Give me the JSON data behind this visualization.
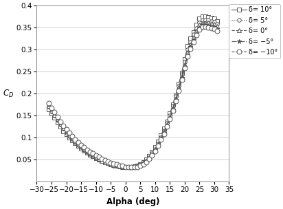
{
  "xlabel": "Alpha (deg)",
  "ylabel": "C_D",
  "xlim": [
    -30,
    35
  ],
  "ylim": [
    0,
    0.4
  ],
  "xticks": [
    -30,
    -25,
    -20,
    -15,
    -10,
    -5,
    0,
    5,
    10,
    15,
    20,
    25,
    30,
    35
  ],
  "yticks": [
    0.05,
    0.1,
    0.15,
    0.2,
    0.25,
    0.3,
    0.35,
    0.4
  ],
  "ytick_labels": [
    "0.05",
    "0.1",
    "0.15",
    "0.2",
    "0.25",
    "0.3",
    "0.35",
    "0.4"
  ],
  "legend_labels": [
    "δ= 10°",
    "δ= 5°",
    "δ= 0°",
    "δ= −5°",
    "δ= −10°"
  ],
  "line_styles": [
    "-",
    ":",
    "--",
    "-.",
    "--"
  ],
  "markers": [
    "s",
    "o",
    "^",
    "*",
    "o"
  ],
  "marker_sizes": [
    4,
    4,
    4,
    5,
    5
  ],
  "alpha_values": [
    -26,
    -25,
    -24,
    -23,
    -22,
    -21,
    -20,
    -19,
    -18,
    -17,
    -16,
    -15,
    -14,
    -13,
    -12,
    -11,
    -10,
    -9,
    -8,
    -7,
    -6,
    -5,
    -4,
    -3,
    -2,
    -1,
    0,
    1,
    2,
    3,
    4,
    5,
    6,
    7,
    8,
    9,
    10,
    11,
    12,
    13,
    14,
    15,
    16,
    17,
    18,
    19,
    20,
    21,
    22,
    23,
    24,
    25,
    26,
    27,
    28,
    29,
    30,
    31
  ],
  "cd_delta_10": [
    0.165,
    0.155,
    0.145,
    0.135,
    0.125,
    0.115,
    0.108,
    0.101,
    0.094,
    0.088,
    0.082,
    0.076,
    0.071,
    0.066,
    0.062,
    0.058,
    0.054,
    0.05,
    0.047,
    0.044,
    0.042,
    0.04,
    0.038,
    0.037,
    0.036,
    0.035,
    0.034,
    0.034,
    0.034,
    0.035,
    0.037,
    0.04,
    0.044,
    0.05,
    0.058,
    0.067,
    0.078,
    0.091,
    0.105,
    0.12,
    0.137,
    0.155,
    0.175,
    0.198,
    0.222,
    0.248,
    0.278,
    0.308,
    0.325,
    0.34,
    0.356,
    0.37,
    0.375,
    0.375,
    0.374,
    0.372,
    0.37,
    0.365
  ],
  "cd_delta_5": [
    0.17,
    0.16,
    0.15,
    0.14,
    0.13,
    0.12,
    0.112,
    0.104,
    0.097,
    0.09,
    0.084,
    0.078,
    0.072,
    0.067,
    0.062,
    0.058,
    0.054,
    0.05,
    0.047,
    0.044,
    0.042,
    0.039,
    0.037,
    0.036,
    0.035,
    0.034,
    0.034,
    0.033,
    0.033,
    0.034,
    0.036,
    0.039,
    0.043,
    0.048,
    0.055,
    0.064,
    0.074,
    0.087,
    0.101,
    0.116,
    0.133,
    0.151,
    0.172,
    0.194,
    0.218,
    0.244,
    0.272,
    0.3,
    0.318,
    0.334,
    0.349,
    0.362,
    0.368,
    0.368,
    0.367,
    0.365,
    0.363,
    0.358
  ],
  "cd_delta_0": [
    0.172,
    0.162,
    0.152,
    0.142,
    0.132,
    0.122,
    0.114,
    0.106,
    0.099,
    0.092,
    0.086,
    0.08,
    0.074,
    0.069,
    0.064,
    0.06,
    0.056,
    0.052,
    0.048,
    0.045,
    0.042,
    0.04,
    0.038,
    0.036,
    0.035,
    0.034,
    0.033,
    0.033,
    0.033,
    0.034,
    0.035,
    0.038,
    0.042,
    0.047,
    0.054,
    0.062,
    0.072,
    0.085,
    0.099,
    0.114,
    0.13,
    0.148,
    0.168,
    0.19,
    0.214,
    0.24,
    0.266,
    0.294,
    0.312,
    0.328,
    0.343,
    0.356,
    0.362,
    0.362,
    0.361,
    0.36,
    0.358,
    0.353
  ],
  "cd_delta_m5": [
    0.175,
    0.165,
    0.155,
    0.144,
    0.134,
    0.124,
    0.116,
    0.108,
    0.101,
    0.094,
    0.088,
    0.082,
    0.076,
    0.071,
    0.066,
    0.062,
    0.058,
    0.054,
    0.05,
    0.047,
    0.044,
    0.041,
    0.039,
    0.037,
    0.036,
    0.034,
    0.033,
    0.033,
    0.032,
    0.033,
    0.035,
    0.037,
    0.041,
    0.046,
    0.053,
    0.061,
    0.071,
    0.083,
    0.097,
    0.111,
    0.127,
    0.145,
    0.165,
    0.187,
    0.21,
    0.236,
    0.262,
    0.288,
    0.306,
    0.322,
    0.337,
    0.35,
    0.356,
    0.356,
    0.355,
    0.354,
    0.352,
    0.347
  ],
  "cd_delta_m10": [
    0.178,
    0.168,
    0.158,
    0.147,
    0.137,
    0.127,
    0.119,
    0.111,
    0.103,
    0.096,
    0.09,
    0.084,
    0.078,
    0.073,
    0.068,
    0.064,
    0.06,
    0.056,
    0.052,
    0.049,
    0.046,
    0.043,
    0.041,
    0.039,
    0.037,
    0.036,
    0.034,
    0.033,
    0.033,
    0.033,
    0.034,
    0.037,
    0.04,
    0.045,
    0.052,
    0.06,
    0.07,
    0.082,
    0.095,
    0.109,
    0.125,
    0.143,
    0.162,
    0.183,
    0.207,
    0.232,
    0.258,
    0.284,
    0.302,
    0.318,
    0.333,
    0.346,
    0.352,
    0.352,
    0.351,
    0.349,
    0.347,
    0.342
  ],
  "line_color": "#555555",
  "background_color": "#ffffff"
}
